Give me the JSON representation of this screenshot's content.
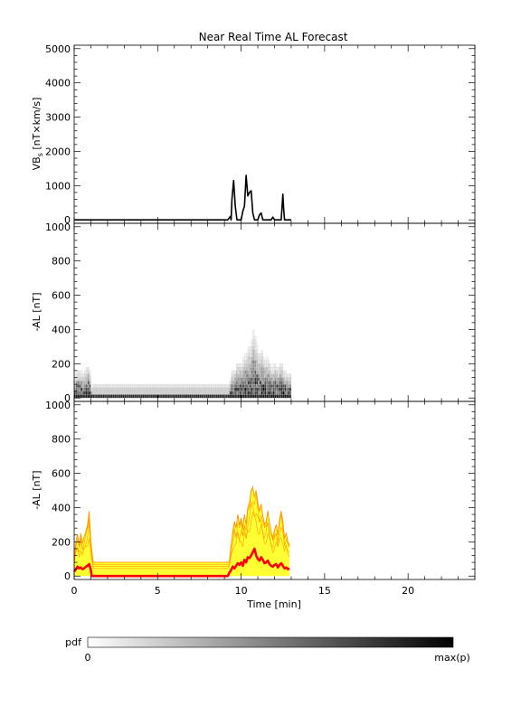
{
  "figure": {
    "title": "Near Real Time AL Forecast"
  },
  "chart_data": [
    {
      "type": "line",
      "ylabel_main": "VB",
      "ylabel_sub": "s",
      "ylabel_unit": " [nT×km/s]",
      "xlim": [
        0,
        24
      ],
      "ylim": [
        -100,
        5100
      ],
      "yticks": [
        0,
        1000,
        2000,
        3000,
        4000,
        5000
      ],
      "series": [
        {
          "color": "#000000",
          "x": [
            0,
            9.2,
            9.35,
            9.4,
            9.45,
            9.55,
            9.65,
            9.75,
            9.9,
            10.0,
            10.1,
            10.2,
            10.3,
            10.4,
            10.5,
            10.6,
            10.7,
            10.8,
            11.0,
            11.1,
            11.2,
            11.3,
            11.8,
            11.9,
            12.0,
            12.4,
            12.5,
            12.55,
            12.6,
            13.0
          ],
          "y": [
            0,
            0,
            100,
            0,
            600,
            1150,
            400,
            0,
            0,
            0,
            250,
            400,
            1300,
            700,
            800,
            850,
            200,
            0,
            0,
            150,
            200,
            0,
            0,
            80,
            0,
            0,
            750,
            300,
            0,
            0
          ]
        }
      ]
    },
    {
      "type": "heatmap",
      "ylabel": "-AL [nT]",
      "xlim": [
        0,
        24
      ],
      "ylim": [
        -20,
        1020
      ],
      "yticks": [
        0,
        200,
        400,
        600,
        800,
        1000
      ],
      "x_bin_width": 0.1,
      "y_bin_width": 20,
      "x_start": 0.05,
      "x_end": 12.95,
      "colorbar": {
        "label": "pdf",
        "min_label": "0",
        "max_label": "max(p)"
      }
    },
    {
      "type": "area",
      "ylabel": "-AL [nT]",
      "xlabel": "Time [min]",
      "xlim": [
        0,
        24
      ],
      "ylim": [
        -20,
        1020
      ],
      "xticks": [
        0,
        5,
        10,
        15,
        20
      ],
      "yticks": [
        0,
        200,
        400,
        600,
        800,
        1000
      ],
      "band_color": "#ffff33",
      "envelope_color": "#ff9900",
      "median_color": "#ff0000",
      "quiet_level": 80,
      "upper_envelope": {
        "x": [
          0,
          0.1,
          0.2,
          0.3,
          0.4,
          0.5,
          0.6,
          0.7,
          0.8,
          0.9,
          1.0,
          1.1,
          1.2,
          9.3,
          9.4,
          9.5,
          9.6,
          9.7,
          9.8,
          9.9,
          10.0,
          10.1,
          10.2,
          10.3,
          10.4,
          10.5,
          10.6,
          10.7,
          10.8,
          10.9,
          11.0,
          11.1,
          11.2,
          11.3,
          11.4,
          11.5,
          11.6,
          11.7,
          11.8,
          11.9,
          12.0,
          12.1,
          12.2,
          12.3,
          12.4,
          12.5,
          12.6,
          12.7,
          12.8,
          12.9
        ],
        "y": [
          90,
          200,
          240,
          180,
          250,
          190,
          230,
          260,
          300,
          380,
          200,
          110,
          90,
          90,
          180,
          260,
          320,
          280,
          360,
          300,
          340,
          280,
          360,
          300,
          400,
          430,
          500,
          520,
          460,
          500,
          430,
          380,
          420,
          350,
          300,
          320,
          380,
          310,
          260,
          220,
          270,
          300,
          240,
          330,
          380,
          320,
          220,
          250,
          200,
          180
        ]
      },
      "median": {
        "x": [
          0,
          0.1,
          0.2,
          0.3,
          0.4,
          0.5,
          0.6,
          0.7,
          0.8,
          0.9,
          1.0,
          1.05,
          9.2,
          9.3,
          9.4,
          9.5,
          9.6,
          9.7,
          9.8,
          9.9,
          10.0,
          10.1,
          10.2,
          10.3,
          10.4,
          10.5,
          10.6,
          10.7,
          10.8,
          10.9,
          11.0,
          11.1,
          11.2,
          11.3,
          11.4,
          11.5,
          11.6,
          11.7,
          11.8,
          11.9,
          12.0,
          12.1,
          12.2,
          12.3,
          12.4,
          12.5,
          12.6,
          12.7,
          12.8,
          12.9
        ],
        "y": [
          25,
          40,
          55,
          45,
          50,
          40,
          45,
          55,
          60,
          70,
          35,
          0,
          0,
          20,
          35,
          55,
          45,
          60,
          75,
          65,
          80,
          60,
          95,
          80,
          110,
          105,
          120,
          140,
          160,
          120,
          100,
          90,
          110,
          95,
          75,
          80,
          90,
          70,
          60,
          55,
          65,
          70,
          50,
          65,
          75,
          60,
          45,
          50,
          40,
          45
        ]
      }
    }
  ]
}
